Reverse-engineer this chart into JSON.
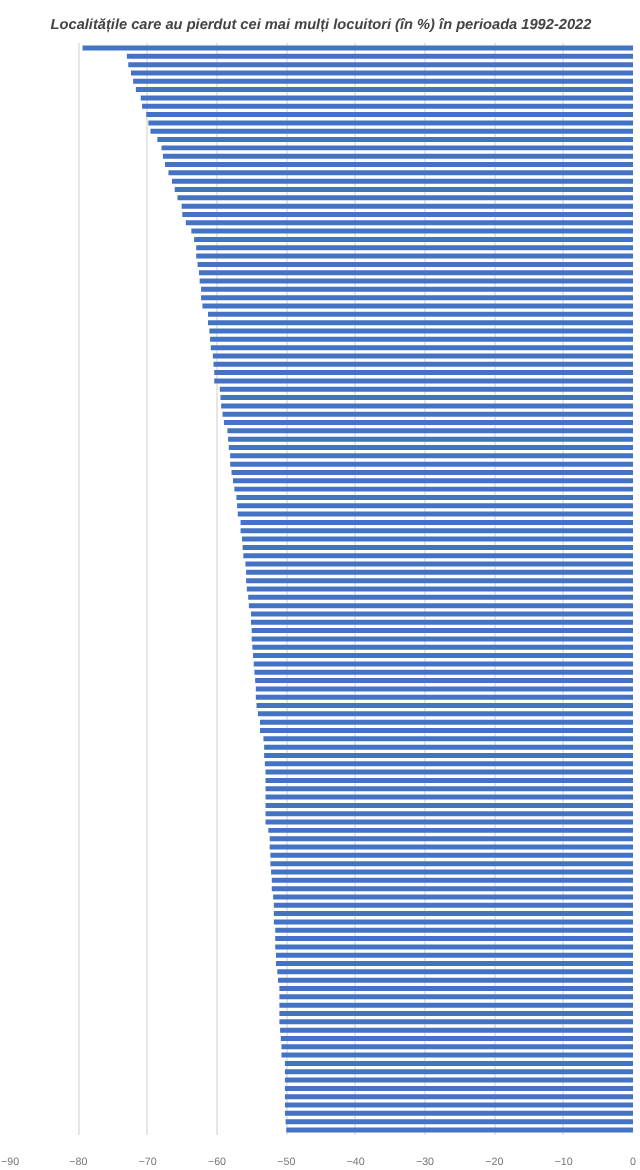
{
  "chart_data": {
    "type": "bar",
    "orientation": "horizontal",
    "title": "Localitățile care au pierdut cei mai mulți locuitori (în %) în perioada 1992-2022",
    "categories": [
      null,
      null,
      null,
      null,
      null,
      null,
      null,
      null,
      null,
      null,
      null,
      null,
      null,
      null,
      null,
      null,
      null,
      null,
      null,
      null,
      null,
      null,
      null,
      null,
      null,
      null,
      null,
      null,
      null,
      null,
      null,
      null,
      null,
      null,
      null,
      null,
      null,
      null,
      null,
      null,
      null,
      null,
      null,
      null,
      null,
      null,
      null,
      null,
      null,
      null,
      null,
      null,
      null,
      null,
      null,
      null,
      null,
      null,
      null,
      null,
      null,
      null,
      null,
      null,
      null,
      null,
      null,
      null,
      null,
      null,
      null,
      null,
      null,
      null,
      null,
      null,
      null,
      null,
      null,
      null,
      null,
      null,
      null,
      null,
      null,
      null,
      null,
      null,
      null,
      null,
      null,
      null,
      null,
      null,
      null,
      null,
      null,
      null,
      null,
      null,
      null,
      null,
      null,
      null,
      null,
      null,
      null,
      null,
      null,
      null,
      null,
      null,
      null,
      null,
      null,
      null,
      null,
      null,
      null,
      null,
      null,
      null,
      null,
      null,
      null,
      null,
      null,
      null,
      null,
      null,
      null
    ],
    "values": [
      -79.4,
      -73.0,
      -72.8,
      -72.4,
      -72.1,
      -71.7,
      -71.0,
      -70.8,
      -70.2,
      -69.9,
      -69.6,
      -68.6,
      -68.0,
      -67.8,
      -67.5,
      -67.0,
      -66.5,
      -66.1,
      -65.7,
      -65.1,
      -65.0,
      -64.5,
      -63.7,
      -63.3,
      -63.0,
      -63.0,
      -62.8,
      -62.6,
      -62.5,
      -62.3,
      -62.3,
      -62.1,
      -61.3,
      -61.3,
      -61.1,
      -61.0,
      -60.9,
      -60.6,
      -60.5,
      -60.4,
      -60.4,
      -59.6,
      -59.5,
      -59.4,
      -59.2,
      -59.0,
      -58.5,
      -58.4,
      -58.3,
      -58.1,
      -58.1,
      -57.9,
      -57.7,
      -57.5,
      -57.2,
      -57.1,
      -57.0,
      -56.6,
      -56.6,
      -56.4,
      -56.3,
      -56.2,
      -55.9,
      -55.8,
      -55.8,
      -55.7,
      -55.5,
      -55.4,
      -55.1,
      -55.1,
      -55.0,
      -55.0,
      -54.9,
      -54.8,
      -54.7,
      -54.6,
      -54.5,
      -54.4,
      -54.4,
      -54.3,
      -54.1,
      -53.8,
      -53.8,
      -53.3,
      -53.2,
      -53.2,
      -53.1,
      -53.0,
      -53.0,
      -53.0,
      -53.0,
      -53.0,
      -53.0,
      -53.0,
      -52.6,
      -52.4,
      -52.4,
      -52.3,
      -52.3,
      -52.2,
      -52.1,
      -52.1,
      -51.9,
      -51.8,
      -51.8,
      -51.8,
      -51.6,
      -51.6,
      -51.6,
      -51.5,
      -51.5,
      -51.3,
      -51.2,
      -51.0,
      -51.0,
      -51.0,
      -51.0,
      -51.0,
      -50.9,
      -50.8,
      -50.7,
      -50.7,
      -50.2,
      -50.2,
      -50.2,
      -50.2,
      -50.2,
      -50.2,
      -50.2,
      -50.1,
      -50.0
    ],
    "color": "#4472c4",
    "xlim": [
      -90,
      0
    ],
    "xticks": [
      -90,
      -80,
      -70,
      -60,
      -50,
      -40,
      -30,
      -20,
      -10,
      0
    ],
    "grid": "x"
  }
}
